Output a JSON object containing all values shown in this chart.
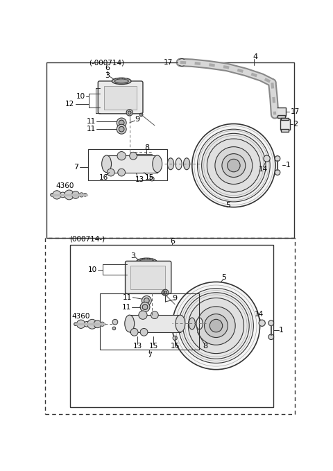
{
  "bg_color": "#ffffff",
  "line_color": "#333333",
  "top_label": "(-000714)",
  "top_sub": "6",
  "bottom_label": "(000714-)",
  "bottom_sub": "6"
}
